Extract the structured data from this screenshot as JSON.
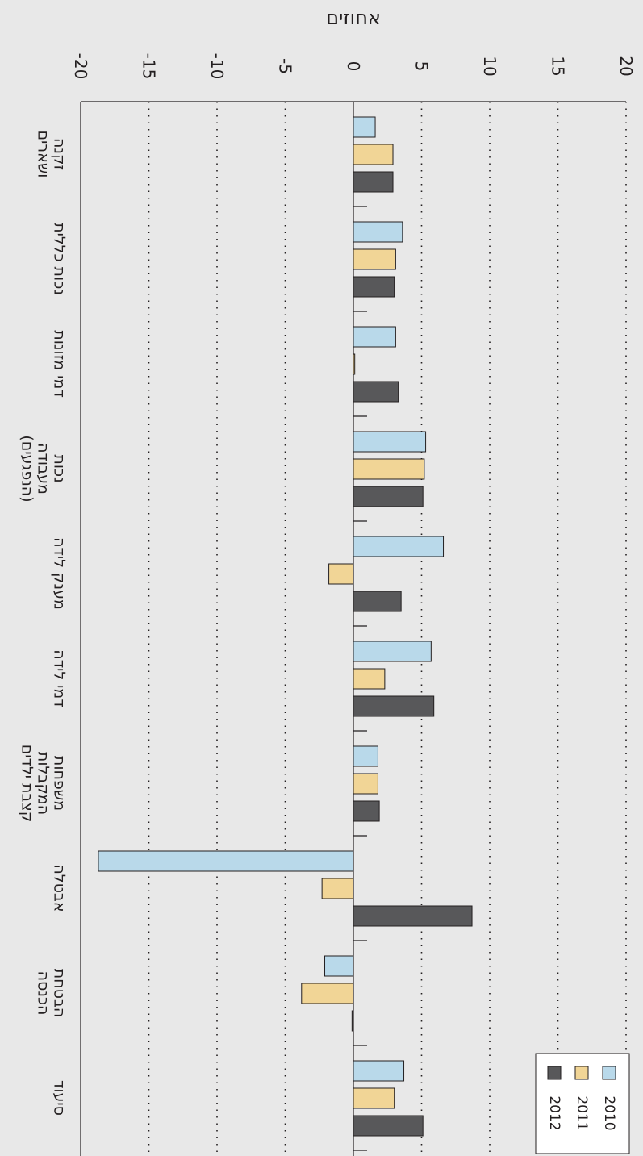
{
  "chart_data": {
    "type": "bar",
    "orientation": "horizontal",
    "title": "",
    "ylabel": "אחוזים",
    "xlabel": "",
    "xlim": [
      -20,
      20
    ],
    "ticks": [
      -20,
      -15,
      -10,
      -5,
      0,
      5,
      10,
      15,
      20
    ],
    "tick_labels": [
      "-20",
      "-15",
      "-10",
      "-5",
      "0",
      "5",
      "10",
      "15",
      "20"
    ],
    "grid": true,
    "legend_position": "bottom-right",
    "categories": [
      [
        "זקנה",
        "ושארים"
      ],
      [
        "נכות כללית"
      ],
      [
        "דמי מזונות"
      ],
      [
        "נכות",
        "מעבודה",
        "(הנפגעים)"
      ],
      [
        "מענק לידה"
      ],
      [
        "דמי לידה"
      ],
      [
        "משפחות",
        "המקבלות",
        "קצבת ילדים"
      ],
      [
        "אבטלה"
      ],
      [
        "הבטחת",
        "הכנסה"
      ],
      [
        "סיעוד"
      ]
    ],
    "series": [
      {
        "name": "2010",
        "color": "#b9d9ea",
        "values": [
          1.6,
          3.6,
          3.1,
          5.3,
          6.6,
          5.7,
          1.8,
          -18.7,
          -2.1,
          3.7
        ]
      },
      {
        "name": "2011",
        "color": "#f1d596",
        "values": [
          2.9,
          3.1,
          0.1,
          5.2,
          -1.8,
          2.3,
          1.8,
          -2.3,
          -3.8,
          3.0
        ]
      },
      {
        "name": "2012",
        "color": "#58585a",
        "values": [
          2.9,
          3.0,
          3.3,
          5.1,
          3.5,
          5.9,
          1.9,
          8.7,
          -0.1,
          5.1
        ]
      }
    ]
  }
}
